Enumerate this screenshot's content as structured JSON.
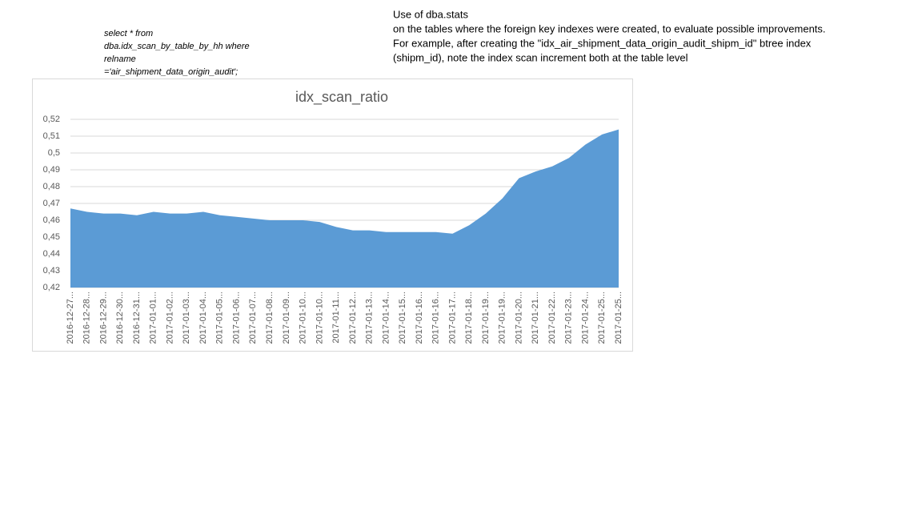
{
  "query_lines": [
    "select * from",
    "dba.idx_scan_by_table_by_hh where",
    "relname",
    "='air_shipment_data_origin_audit';"
  ],
  "note_lines": [
    "Use of dba.stats",
    "on the tables where the foreign key indexes were created, to evaluate possible improvements.",
    "For example, after creating the \"idx_air_shipment_data_origin_audit_shipm_id\" btree index",
    "(shipm_id), note the index scan increment both at the table level"
  ],
  "chart_data": {
    "type": "area",
    "title": "idx_scan_ratio",
    "color": "#5b9bd5",
    "grid": true,
    "categories": [
      "2016-12-27...",
      "2016-12-28...",
      "2016-12-29...",
      "2016-12-30...",
      "2016-12-31...",
      "2017-01-01...",
      "2017-01-02...",
      "2017-01-03...",
      "2017-01-04...",
      "2017-01-05...",
      "2017-01-06...",
      "2017-01-07...",
      "2017-01-08...",
      "2017-01-09...",
      "2017-01-10...",
      "2017-01-10...",
      "2017-01-11...",
      "2017-01-12...",
      "2017-01-13...",
      "2017-01-14...",
      "2017-01-15...",
      "2017-01-16...",
      "2017-01-16...",
      "2017-01-17...",
      "2017-01-18...",
      "2017-01-19...",
      "2017-01-19...",
      "2017-01-20...",
      "2017-01-21...",
      "2017-01-22...",
      "2017-01-23...",
      "2017-01-24...",
      "2017-01-25...",
      "2017-01-25..."
    ],
    "values": [
      0.467,
      0.465,
      0.464,
      0.464,
      0.463,
      0.465,
      0.464,
      0.464,
      0.465,
      0.463,
      0.462,
      0.461,
      0.46,
      0.46,
      0.46,
      0.459,
      0.456,
      0.454,
      0.454,
      0.453,
      0.453,
      0.453,
      0.453,
      0.452,
      0.457,
      0.464,
      0.473,
      0.485,
      0.489,
      0.492,
      0.497,
      0.505,
      0.511,
      0.514
    ],
    "ylim": [
      0.42,
      0.52
    ],
    "yticks": [
      {
        "value": 0.42,
        "label": "0,42"
      },
      {
        "value": 0.43,
        "label": "0,43"
      },
      {
        "value": 0.44,
        "label": "0,44"
      },
      {
        "value": 0.45,
        "label": "0,45"
      },
      {
        "value": 0.46,
        "label": "0,46"
      },
      {
        "value": 0.47,
        "label": "0,47"
      },
      {
        "value": 0.48,
        "label": "0,48"
      },
      {
        "value": 0.49,
        "label": "0,49"
      },
      {
        "value": 0.5,
        "label": "0,5"
      },
      {
        "value": 0.51,
        "label": "0,51"
      },
      {
        "value": 0.52,
        "label": "0,52"
      }
    ]
  }
}
